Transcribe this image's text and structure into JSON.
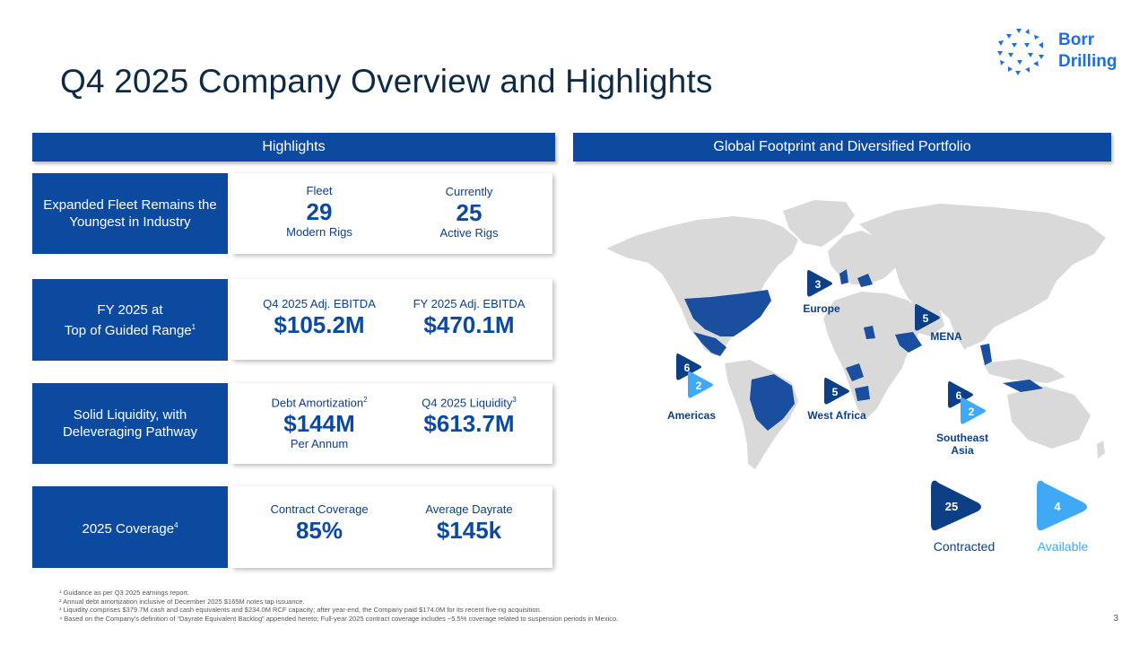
{
  "title": "Q4 2025 Company Overview and Highlights",
  "logo": {
    "line1": "Borr",
    "line2": "Drilling"
  },
  "headers": {
    "left": "Highlights",
    "right": "Global Footprint and Diversified Portfolio"
  },
  "rows": [
    {
      "label": "Expanded Fleet Remains the Youngest in Industry",
      "metrics": [
        {
          "label": "Fleet",
          "value": "29",
          "sub": "Modern Rigs"
        },
        {
          "label": "Currently",
          "value": "25",
          "sub": "Active Rigs"
        }
      ]
    },
    {
      "label_line1": "FY 2025 at",
      "label_line2": "Top of Guided Range",
      "label_sup": "1",
      "metrics": [
        {
          "label": "Q4 2025 Adj. EBITDA",
          "value": "$105.2M"
        },
        {
          "label": "FY 2025 Adj. EBITDA",
          "value": "$470.1M"
        }
      ]
    },
    {
      "label": "Solid Liquidity, with Deleveraging Pathway",
      "metrics": [
        {
          "label": "Debt Amortization",
          "label_sup": "2",
          "value": "$144M",
          "sub": "Per Annum"
        },
        {
          "label": "Q4 2025 Liquidity",
          "label_sup": "3",
          "value": "$613.7M"
        }
      ]
    },
    {
      "label": "2025 Coverage",
      "label_sup": "4",
      "metrics": [
        {
          "label": "Contract Coverage",
          "value": "85%"
        },
        {
          "label": "Average Dayrate",
          "value": "$145k"
        }
      ]
    }
  ],
  "regions": [
    {
      "name": "Europe",
      "contracted": "3"
    },
    {
      "name": "MENA",
      "contracted": "5"
    },
    {
      "name": "Americas",
      "contracted": "6",
      "available": "2"
    },
    {
      "name": "West Africa",
      "contracted": "5"
    },
    {
      "name_line1": "Southeast",
      "name_line2": "Asia",
      "contracted": "6",
      "available": "2"
    }
  ],
  "legend": {
    "contracted": {
      "value": "25",
      "label": "Contracted"
    },
    "available": {
      "value": "4",
      "label": "Available"
    }
  },
  "footnotes": [
    "¹ Guidance as per Q3 2025 earnings report.",
    "² Annual debt amortization inclusive of December 2025 $165M notes tap issuance.",
    "³ Liquidity comprises $379.7M cash and cash equivalents and $234.0M RCF capacity; after year-end, the Company paid $174.0M for its recent five-rig acquisition.",
    "⁴ Based on the Company’s definition of “Dayrate Equivalent Backlog” appended hereto; Full-year 2025 contract coverage includes ~5.5% coverage related to suspension periods in Mexico."
  ],
  "page_number": "3",
  "colors": {
    "dark_blue": "#0c4aa0",
    "navy": "#103a86",
    "light_blue": "#3fa9f5",
    "map_gray": "#d9d9d9",
    "map_blue": "#1a4f9f"
  }
}
